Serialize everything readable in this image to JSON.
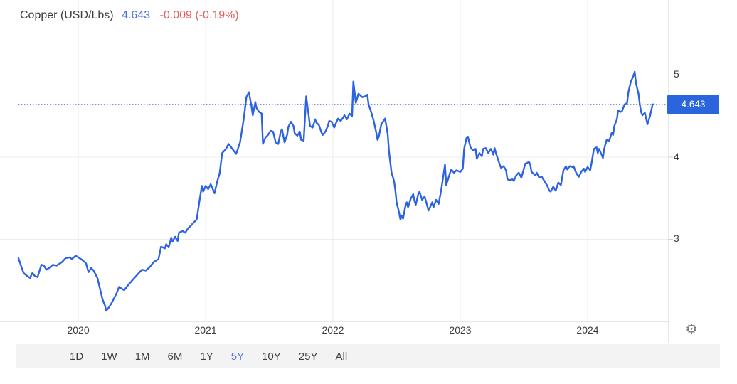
{
  "header": {
    "title": "Copper (USD/Lbs)",
    "price": "4.643",
    "change": "-0.009 (-0.19%)"
  },
  "toolbar": {
    "ranges": [
      "1D",
      "1W",
      "1M",
      "6M",
      "1Y",
      "5Y",
      "10Y",
      "25Y",
      "All"
    ],
    "selected": "5Y"
  },
  "icons": {
    "settings": "gear-icon",
    "settings_glyph": "⚙"
  },
  "colors": {
    "line_blue": "#2d63e3",
    "dotted_blue": "#4a6de0",
    "price_box_blue": "#2a65de",
    "header_price_blue": "#4a6ce0",
    "change_red": "#e25c5c",
    "grid_gray": "#ececec",
    "axis_gray": "#cfcfcf",
    "tick_text": "#3c3c3c",
    "toolbar_bg": "#f3f3f3",
    "selected_range_blue": "#5b74e8",
    "gear_gray": "#7a7a7a"
  },
  "chart_data": {
    "type": "line",
    "title": "Copper (USD/Lbs) — 5Y",
    "xlabel": "",
    "ylabel": "USD/Lbs",
    "grid": true,
    "x_range": [
      2019.385,
      2024.637
    ],
    "y_range": [
      2.0,
      5.913
    ],
    "x_ticks": [
      2020,
      2021,
      2022,
      2023,
      2024
    ],
    "x_tick_labels": [
      "2020",
      "2021",
      "2022",
      "2023",
      "2024"
    ],
    "y_ticks": [
      3,
      4,
      5
    ],
    "y_tick_labels": [
      "3",
      "4",
      "5"
    ],
    "current_price": 4.643,
    "current_price_label": "4.643",
    "series": [
      {
        "name": "Copper",
        "points": [
          [
            2019.53,
            2.77
          ],
          [
            2019.55,
            2.68
          ],
          [
            2019.57,
            2.59
          ],
          [
            2019.6,
            2.55
          ],
          [
            2019.62,
            2.53
          ],
          [
            2019.64,
            2.59
          ],
          [
            2019.66,
            2.55
          ],
          [
            2019.68,
            2.54
          ],
          [
            2019.71,
            2.69
          ],
          [
            2019.73,
            2.68
          ],
          [
            2019.75,
            2.63
          ],
          [
            2019.77,
            2.65
          ],
          [
            2019.8,
            2.69
          ],
          [
            2019.83,
            2.68
          ],
          [
            2019.85,
            2.7
          ],
          [
            2019.87,
            2.72
          ],
          [
            2019.9,
            2.77
          ],
          [
            2019.93,
            2.78
          ],
          [
            2019.95,
            2.76
          ],
          [
            2019.98,
            2.8
          ],
          [
            2020.0,
            2.78
          ],
          [
            2020.03,
            2.75
          ],
          [
            2020.06,
            2.71
          ],
          [
            2020.08,
            2.6
          ],
          [
            2020.1,
            2.65
          ],
          [
            2020.12,
            2.62
          ],
          [
            2020.15,
            2.53
          ],
          [
            2020.17,
            2.4
          ],
          [
            2020.19,
            2.27
          ],
          [
            2020.21,
            2.19
          ],
          [
            2020.22,
            2.13
          ],
          [
            2020.24,
            2.17
          ],
          [
            2020.26,
            2.22
          ],
          [
            2020.28,
            2.28
          ],
          [
            2020.3,
            2.34
          ],
          [
            2020.32,
            2.42
          ],
          [
            2020.36,
            2.38
          ],
          [
            2020.4,
            2.46
          ],
          [
            2020.43,
            2.51
          ],
          [
            2020.47,
            2.58
          ],
          [
            2020.5,
            2.63
          ],
          [
            2020.53,
            2.62
          ],
          [
            2020.56,
            2.66
          ],
          [
            2020.59,
            2.72
          ],
          [
            2020.63,
            2.76
          ],
          [
            2020.65,
            2.91
          ],
          [
            2020.68,
            2.89
          ],
          [
            2020.69,
            2.94
          ],
          [
            2020.71,
            2.9
          ],
          [
            2020.73,
            3.02
          ],
          [
            2020.74,
            2.97
          ],
          [
            2020.76,
            3.03
          ],
          [
            2020.78,
            2.98
          ],
          [
            2020.79,
            3.08
          ],
          [
            2020.82,
            3.1
          ],
          [
            2020.84,
            3.08
          ],
          [
            2020.86,
            3.13
          ],
          [
            2020.88,
            3.16
          ],
          [
            2020.91,
            3.21
          ],
          [
            2020.93,
            3.24
          ],
          [
            2020.95,
            3.45
          ],
          [
            2020.97,
            3.65
          ],
          [
            2020.98,
            3.58
          ],
          [
            2021.0,
            3.65
          ],
          [
            2021.02,
            3.61
          ],
          [
            2021.04,
            3.67
          ],
          [
            2021.07,
            3.56
          ],
          [
            2021.09,
            3.7
          ],
          [
            2021.11,
            3.8
          ],
          [
            2021.13,
            4.05
          ],
          [
            2021.16,
            4.1
          ],
          [
            2021.18,
            4.16
          ],
          [
            2021.21,
            4.1
          ],
          [
            2021.24,
            4.04
          ],
          [
            2021.27,
            4.18
          ],
          [
            2021.3,
            4.47
          ],
          [
            2021.32,
            4.73
          ],
          [
            2021.34,
            4.79
          ],
          [
            2021.36,
            4.62
          ],
          [
            2021.37,
            4.51
          ],
          [
            2021.39,
            4.67
          ],
          [
            2021.4,
            4.6
          ],
          [
            2021.42,
            4.55
          ],
          [
            2021.44,
            4.53
          ],
          [
            2021.45,
            4.16
          ],
          [
            2021.47,
            4.24
          ],
          [
            2021.49,
            4.27
          ],
          [
            2021.51,
            4.32
          ],
          [
            2021.53,
            4.31
          ],
          [
            2021.55,
            4.18
          ],
          [
            2021.57,
            4.16
          ],
          [
            2021.59,
            4.31
          ],
          [
            2021.6,
            4.34
          ],
          [
            2021.62,
            4.18
          ],
          [
            2021.64,
            4.27
          ],
          [
            2021.65,
            4.37
          ],
          [
            2021.67,
            4.43
          ],
          [
            2021.69,
            4.38
          ],
          [
            2021.7,
            4.29
          ],
          [
            2021.72,
            4.26
          ],
          [
            2021.74,
            4.31
          ],
          [
            2021.75,
            4.21
          ],
          [
            2021.77,
            4.2
          ],
          [
            2021.79,
            4.74
          ],
          [
            2021.8,
            4.62
          ],
          [
            2021.82,
            4.38
          ],
          [
            2021.84,
            4.36
          ],
          [
            2021.86,
            4.46
          ],
          [
            2021.87,
            4.42
          ],
          [
            2021.89,
            4.39
          ],
          [
            2021.91,
            4.3
          ],
          [
            2021.92,
            4.27
          ],
          [
            2021.94,
            4.31
          ],
          [
            2021.96,
            4.38
          ],
          [
            2021.97,
            4.44
          ],
          [
            2021.99,
            4.43
          ],
          [
            2022.01,
            4.36
          ],
          [
            2022.02,
            4.4
          ],
          [
            2022.04,
            4.47
          ],
          [
            2022.06,
            4.44
          ],
          [
            2022.08,
            4.48
          ],
          [
            2022.09,
            4.51
          ],
          [
            2022.11,
            4.46
          ],
          [
            2022.13,
            4.53
          ],
          [
            2022.15,
            4.5
          ],
          [
            2022.16,
            4.92
          ],
          [
            2022.17,
            4.79
          ],
          [
            2022.18,
            4.66
          ],
          [
            2022.2,
            4.77
          ],
          [
            2022.21,
            4.76
          ],
          [
            2022.23,
            4.73
          ],
          [
            2022.25,
            4.74
          ],
          [
            2022.27,
            4.76
          ],
          [
            2022.28,
            4.64
          ],
          [
            2022.3,
            4.55
          ],
          [
            2022.32,
            4.44
          ],
          [
            2022.34,
            4.3
          ],
          [
            2022.35,
            4.21
          ],
          [
            2022.36,
            4.25
          ],
          [
            2022.38,
            4.4
          ],
          [
            2022.41,
            4.47
          ],
          [
            2022.43,
            4.28
          ],
          [
            2022.44,
            4.07
          ],
          [
            2022.46,
            3.81
          ],
          [
            2022.48,
            3.71
          ],
          [
            2022.49,
            3.6
          ],
          [
            2022.5,
            3.45
          ],
          [
            2022.52,
            3.32
          ],
          [
            2022.53,
            3.24
          ],
          [
            2022.54,
            3.29
          ],
          [
            2022.55,
            3.25
          ],
          [
            2022.57,
            3.41
          ],
          [
            2022.58,
            3.45
          ],
          [
            2022.59,
            3.39
          ],
          [
            2022.61,
            3.49
          ],
          [
            2022.63,
            3.55
          ],
          [
            2022.64,
            3.47
          ],
          [
            2022.65,
            3.42
          ],
          [
            2022.67,
            3.55
          ],
          [
            2022.68,
            3.58
          ],
          [
            2022.7,
            3.48
          ],
          [
            2022.72,
            3.52
          ],
          [
            2022.74,
            3.41
          ],
          [
            2022.75,
            3.35
          ],
          [
            2022.78,
            3.45
          ],
          [
            2022.79,
            3.39
          ],
          [
            2022.81,
            3.48
          ],
          [
            2022.83,
            3.43
          ],
          [
            2022.85,
            3.6
          ],
          [
            2022.87,
            3.8
          ],
          [
            2022.88,
            3.91
          ],
          [
            2022.89,
            3.66
          ],
          [
            2022.92,
            3.81
          ],
          [
            2022.93,
            3.85
          ],
          [
            2022.95,
            3.81
          ],
          [
            2022.97,
            3.84
          ],
          [
            2023.0,
            3.82
          ],
          [
            2023.02,
            3.86
          ],
          [
            2023.03,
            4.1
          ],
          [
            2023.05,
            4.24
          ],
          [
            2023.06,
            4.25
          ],
          [
            2023.08,
            4.12
          ],
          [
            2023.1,
            4.08
          ],
          [
            2023.12,
            4.1
          ],
          [
            2023.13,
            3.98
          ],
          [
            2023.15,
            4.05
          ],
          [
            2023.17,
            4.01
          ],
          [
            2023.18,
            4.1
          ],
          [
            2023.2,
            4.11
          ],
          [
            2023.22,
            4.05
          ],
          [
            2023.24,
            4.1
          ],
          [
            2023.26,
            4.03
          ],
          [
            2023.27,
            4.11
          ],
          [
            2023.28,
            4.05
          ],
          [
            2023.31,
            3.91
          ],
          [
            2023.32,
            3.87
          ],
          [
            2023.34,
            3.89
          ],
          [
            2023.36,
            3.84
          ],
          [
            2023.37,
            3.73
          ],
          [
            2023.39,
            3.72
          ],
          [
            2023.41,
            3.73
          ],
          [
            2023.42,
            3.71
          ],
          [
            2023.44,
            3.78
          ],
          [
            2023.46,
            3.81
          ],
          [
            2023.48,
            3.75
          ],
          [
            2023.5,
            3.86
          ],
          [
            2023.51,
            3.92
          ],
          [
            2023.54,
            3.94
          ],
          [
            2023.55,
            3.91
          ],
          [
            2023.56,
            3.82
          ],
          [
            2023.59,
            3.78
          ],
          [
            2023.6,
            3.81
          ],
          [
            2023.62,
            3.75
          ],
          [
            2023.64,
            3.76
          ],
          [
            2023.66,
            3.71
          ],
          [
            2023.68,
            3.66
          ],
          [
            2023.7,
            3.59
          ],
          [
            2023.71,
            3.58
          ],
          [
            2023.73,
            3.64
          ],
          [
            2023.75,
            3.59
          ],
          [
            2023.77,
            3.69
          ],
          [
            2023.79,
            3.66
          ],
          [
            2023.81,
            3.84
          ],
          [
            2023.83,
            3.89
          ],
          [
            2023.84,
            3.85
          ],
          [
            2023.86,
            3.89
          ],
          [
            2023.88,
            3.88
          ],
          [
            2023.89,
            3.89
          ],
          [
            2023.91,
            3.81
          ],
          [
            2023.93,
            3.76
          ],
          [
            2023.95,
            3.82
          ],
          [
            2023.97,
            3.86
          ],
          [
            2023.98,
            3.82
          ],
          [
            2024.0,
            3.88
          ],
          [
            2024.02,
            3.84
          ],
          [
            2024.03,
            3.92
          ],
          [
            2024.05,
            4.1
          ],
          [
            2024.07,
            4.12
          ],
          [
            2024.08,
            4.05
          ],
          [
            2024.09,
            4.1
          ],
          [
            2024.11,
            4.03
          ],
          [
            2024.12,
            3.99
          ],
          [
            2024.13,
            4.1
          ],
          [
            2024.15,
            4.21
          ],
          [
            2024.17,
            4.2
          ],
          [
            2024.19,
            4.3
          ],
          [
            2024.2,
            4.27
          ],
          [
            2024.21,
            4.38
          ],
          [
            2024.23,
            4.46
          ],
          [
            2024.24,
            4.57
          ],
          [
            2024.26,
            4.55
          ],
          [
            2024.27,
            4.56
          ],
          [
            2024.28,
            4.6
          ],
          [
            2024.29,
            4.64
          ],
          [
            2024.31,
            4.66
          ],
          [
            2024.32,
            4.79
          ],
          [
            2024.34,
            4.92
          ],
          [
            2024.36,
            4.99
          ],
          [
            2024.37,
            5.04
          ],
          [
            2024.38,
            4.9
          ],
          [
            2024.4,
            4.77
          ],
          [
            2024.41,
            4.64
          ],
          [
            2024.42,
            4.55
          ],
          [
            2024.43,
            4.51
          ],
          [
            2024.45,
            4.54
          ],
          [
            2024.46,
            4.47
          ],
          [
            2024.47,
            4.4
          ],
          [
            2024.49,
            4.5
          ],
          [
            2024.5,
            4.57
          ],
          [
            2024.51,
            4.64
          ],
          [
            2024.52,
            4.643
          ]
        ]
      }
    ]
  }
}
